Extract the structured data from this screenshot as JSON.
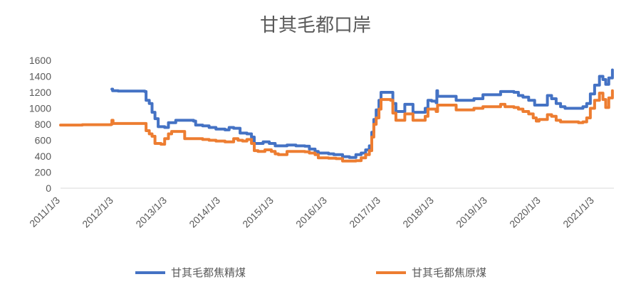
{
  "chart_data": {
    "type": "line",
    "title": "甘其毛都口岸",
    "xlabel": "",
    "ylabel": "",
    "ylim": [
      0,
      1600
    ],
    "yticks": [
      0,
      200,
      400,
      600,
      800,
      1000,
      1200,
      1400,
      1600
    ],
    "xlim": [
      "2011-01-03",
      "2021-05-15"
    ],
    "xticks": [
      "2011/1/3",
      "2012/1/3",
      "2013/1/3",
      "2014/1/3",
      "2015/1/3",
      "2016/1/3",
      "2017/1/3",
      "2018/1/3",
      "2019/1/3",
      "2020/1/3",
      "2021/1/3"
    ],
    "grid": false,
    "legend_position": "bottom",
    "series": [
      {
        "name": "甘其毛都焦精煤",
        "color": "#4472C4",
        "points": [
          [
            "2011-12-20",
            1240
          ],
          [
            "2011-12-25",
            1220
          ],
          [
            "2012-02-01",
            1215
          ],
          [
            "2012-06-01",
            1215
          ],
          [
            "2012-08-01",
            1210
          ],
          [
            "2012-08-10",
            1100
          ],
          [
            "2012-09-01",
            1060
          ],
          [
            "2012-09-20",
            950
          ],
          [
            "2012-10-10",
            870
          ],
          [
            "2012-11-01",
            770
          ],
          [
            "2012-12-15",
            760
          ],
          [
            "2013-01-10",
            820
          ],
          [
            "2013-03-01",
            850
          ],
          [
            "2013-05-01",
            850
          ],
          [
            "2013-07-01",
            840
          ],
          [
            "2013-07-15",
            790
          ],
          [
            "2013-09-01",
            780
          ],
          [
            "2013-10-15",
            760
          ],
          [
            "2013-12-01",
            740
          ],
          [
            "2014-02-01",
            730
          ],
          [
            "2014-03-01",
            760
          ],
          [
            "2014-04-01",
            750
          ],
          [
            "2014-05-15",
            690
          ],
          [
            "2014-07-01",
            680
          ],
          [
            "2014-08-01",
            640
          ],
          [
            "2014-08-20",
            560
          ],
          [
            "2014-09-15",
            560
          ],
          [
            "2014-10-20",
            580
          ],
          [
            "2014-12-01",
            560
          ],
          [
            "2015-01-10",
            530
          ],
          [
            "2015-04-01",
            540
          ],
          [
            "2015-06-01",
            530
          ],
          [
            "2015-08-01",
            525
          ],
          [
            "2015-09-01",
            490
          ],
          [
            "2015-10-10",
            460
          ],
          [
            "2015-11-01",
            440
          ],
          [
            "2016-01-10",
            430
          ],
          [
            "2016-02-15",
            420
          ],
          [
            "2016-04-01",
            420
          ],
          [
            "2016-04-15",
            395
          ],
          [
            "2016-06-01",
            385
          ],
          [
            "2016-07-15",
            420
          ],
          [
            "2016-08-20",
            440
          ],
          [
            "2016-09-20",
            480
          ],
          [
            "2016-10-15",
            530
          ],
          [
            "2016-11-01",
            700
          ],
          [
            "2016-11-15",
            860
          ],
          [
            "2016-12-01",
            980
          ],
          [
            "2016-12-20",
            1100
          ],
          [
            "2017-01-03",
            1200
          ],
          [
            "2017-03-10",
            1200
          ],
          [
            "2017-03-25",
            1060
          ],
          [
            "2017-04-15",
            960
          ],
          [
            "2017-06-01",
            960
          ],
          [
            "2017-06-15",
            1050
          ],
          [
            "2017-08-01",
            1050
          ],
          [
            "2017-08-10",
            950
          ],
          [
            "2017-10-01",
            950
          ],
          [
            "2017-11-01",
            1000
          ],
          [
            "2017-11-20",
            1100
          ],
          [
            "2017-12-15",
            1090
          ],
          [
            "2018-01-15",
            1070
          ],
          [
            "2018-01-20",
            1220
          ],
          [
            "2018-01-25",
            1150
          ],
          [
            "2018-05-01",
            1150
          ],
          [
            "2018-06-01",
            1100
          ],
          [
            "2018-09-01",
            1100
          ],
          [
            "2018-10-01",
            1120
          ],
          [
            "2018-12-01",
            1170
          ],
          [
            "2019-03-01",
            1170
          ],
          [
            "2019-04-01",
            1210
          ],
          [
            "2019-07-01",
            1200
          ],
          [
            "2019-08-01",
            1160
          ],
          [
            "2019-09-01",
            1140
          ],
          [
            "2019-10-10",
            1100
          ],
          [
            "2019-11-20",
            1040
          ],
          [
            "2020-02-01",
            1040
          ],
          [
            "2020-02-15",
            1160
          ],
          [
            "2020-03-15",
            1120
          ],
          [
            "2020-04-15",
            1060
          ],
          [
            "2020-05-15",
            1020
          ],
          [
            "2020-06-15",
            1000
          ],
          [
            "2020-09-15",
            1000
          ],
          [
            "2020-10-15",
            1020
          ],
          [
            "2020-11-10",
            1060
          ],
          [
            "2020-12-05",
            1180
          ],
          [
            "2021-01-03",
            1290
          ],
          [
            "2021-02-05",
            1400
          ],
          [
            "2021-03-01",
            1360
          ],
          [
            "2021-03-20",
            1300
          ],
          [
            "2021-04-10",
            1380
          ],
          [
            "2021-05-05",
            1480
          ]
        ]
      },
      {
        "name": "甘其毛都焦原煤",
        "color": "#ED7D31",
        "points": [
          [
            "2011-01-03",
            790
          ],
          [
            "2011-06-01",
            795
          ],
          [
            "2011-12-15",
            800
          ],
          [
            "2011-12-20",
            850
          ],
          [
            "2011-12-28",
            810
          ],
          [
            "2012-08-01",
            810
          ],
          [
            "2012-08-10",
            720
          ],
          [
            "2012-09-01",
            680
          ],
          [
            "2012-09-20",
            650
          ],
          [
            "2012-10-10",
            560
          ],
          [
            "2012-11-20",
            550
          ],
          [
            "2012-12-15",
            620
          ],
          [
            "2013-01-10",
            680
          ],
          [
            "2013-02-01",
            710
          ],
          [
            "2013-04-01",
            710
          ],
          [
            "2013-05-01",
            620
          ],
          [
            "2013-09-01",
            610
          ],
          [
            "2013-10-15",
            600
          ],
          [
            "2013-12-01",
            590
          ],
          [
            "2014-02-01",
            580
          ],
          [
            "2014-04-01",
            620
          ],
          [
            "2014-05-01",
            600
          ],
          [
            "2014-06-01",
            590
          ],
          [
            "2014-07-01",
            610
          ],
          [
            "2014-08-01",
            560
          ],
          [
            "2014-08-20",
            470
          ],
          [
            "2014-09-15",
            460
          ],
          [
            "2014-11-01",
            480
          ],
          [
            "2014-12-15",
            460
          ],
          [
            "2015-01-10",
            430
          ],
          [
            "2015-02-01",
            420
          ],
          [
            "2015-04-01",
            460
          ],
          [
            "2015-08-01",
            455
          ],
          [
            "2015-09-01",
            440
          ],
          [
            "2015-10-10",
            420
          ],
          [
            "2015-11-01",
            380
          ],
          [
            "2016-01-10",
            375
          ],
          [
            "2016-03-01",
            370
          ],
          [
            "2016-04-15",
            340
          ],
          [
            "2016-07-15",
            345
          ],
          [
            "2016-08-20",
            380
          ],
          [
            "2016-09-20",
            420
          ],
          [
            "2016-10-15",
            470
          ],
          [
            "2016-11-01",
            640
          ],
          [
            "2016-11-15",
            800
          ],
          [
            "2016-12-01",
            880
          ],
          [
            "2016-12-20",
            990
          ],
          [
            "2017-01-03",
            1110
          ],
          [
            "2017-03-10",
            1100
          ],
          [
            "2017-03-25",
            940
          ],
          [
            "2017-04-15",
            850
          ],
          [
            "2017-06-01",
            850
          ],
          [
            "2017-06-15",
            930
          ],
          [
            "2017-08-01",
            930
          ],
          [
            "2017-08-10",
            850
          ],
          [
            "2017-10-01",
            850
          ],
          [
            "2017-11-01",
            900
          ],
          [
            "2017-11-20",
            990
          ],
          [
            "2017-12-15",
            990
          ],
          [
            "2018-01-15",
            960
          ],
          [
            "2018-01-25",
            1040
          ],
          [
            "2018-05-01",
            1040
          ],
          [
            "2018-06-01",
            980
          ],
          [
            "2018-09-01",
            980
          ],
          [
            "2018-10-01",
            1000
          ],
          [
            "2018-12-01",
            1020
          ],
          [
            "2019-03-01",
            1020
          ],
          [
            "2019-04-01",
            1050
          ],
          [
            "2019-05-01",
            1020
          ],
          [
            "2019-07-01",
            1010
          ],
          [
            "2019-08-01",
            990
          ],
          [
            "2019-09-01",
            960
          ],
          [
            "2019-10-10",
            930
          ],
          [
            "2019-11-10",
            880
          ],
          [
            "2019-12-01",
            840
          ],
          [
            "2019-12-20",
            860
          ],
          [
            "2020-02-01",
            860
          ],
          [
            "2020-02-15",
            920
          ],
          [
            "2020-03-15",
            900
          ],
          [
            "2020-04-15",
            850
          ],
          [
            "2020-05-15",
            830
          ],
          [
            "2020-09-15",
            820
          ],
          [
            "2020-10-15",
            830
          ],
          [
            "2020-11-10",
            880
          ],
          [
            "2020-12-05",
            1000
          ],
          [
            "2021-01-03",
            1100
          ],
          [
            "2021-02-05",
            1190
          ],
          [
            "2021-03-01",
            1110
          ],
          [
            "2021-03-20",
            1010
          ],
          [
            "2021-04-10",
            1130
          ],
          [
            "2021-05-05",
            1220
          ]
        ]
      }
    ]
  }
}
